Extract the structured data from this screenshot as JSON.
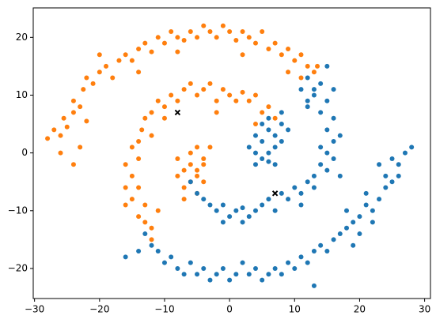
{
  "chart_data": {
    "type": "scatter",
    "xlim": [
      -30.2,
      30.9
    ],
    "ylim": [
      -25.2,
      25.1
    ],
    "xticks": [
      {
        "value": -30,
        "label": "−30"
      },
      {
        "value": -20,
        "label": "−20"
      },
      {
        "value": -10,
        "label": "−10"
      },
      0,
      10,
      20,
      30
    ],
    "yticks": [
      {
        "value": -20,
        "label": "−20"
      },
      {
        "value": -10,
        "label": "−10"
      },
      0,
      10,
      20
    ],
    "grid": false,
    "series": [
      {
        "color": "#ff7f0e",
        "marker": "o",
        "x": [
          -28,
          -27,
          -26,
          -25.5,
          -25,
          -24,
          -24,
          -23,
          -22.5,
          -22,
          -21,
          -20,
          -19,
          -18,
          -17,
          -16,
          -15,
          -14,
          -13,
          -12,
          -11,
          -10,
          -9,
          -8,
          -7,
          -6,
          -5,
          -4,
          -3,
          -2,
          -1,
          0,
          1,
          2,
          3,
          4,
          5,
          6,
          7,
          8,
          9,
          10,
          11,
          12,
          13,
          13.5,
          -26,
          -24,
          -23,
          -20,
          -8,
          2,
          9,
          11,
          -22,
          -14,
          7,
          6,
          5,
          4,
          3,
          2,
          1,
          0,
          -1,
          -2,
          -3,
          -4,
          -5,
          -6,
          -7,
          -8,
          -9,
          -10,
          -11,
          -12,
          -13,
          -13.5,
          -14,
          -15,
          -14,
          -16,
          -15,
          -16,
          -14,
          -15,
          -13,
          -14,
          -13,
          -12,
          -12,
          -16,
          -11,
          -10,
          -2,
          4,
          -12,
          -8,
          -7,
          -6,
          -5,
          -6,
          -7,
          -5,
          -4,
          -6,
          -5,
          -4,
          -3,
          -7,
          -8,
          -5,
          -4
        ],
        "values": [
          2.5,
          4,
          3,
          6,
          4.5,
          7,
          9,
          8,
          11,
          13,
          12,
          14,
          15,
          13,
          16,
          17,
          16,
          18,
          19,
          17.5,
          20,
          19,
          21,
          20,
          19.5,
          21,
          20,
          22,
          21,
          20,
          22,
          21,
          19.5,
          21,
          20,
          19,
          21,
          18,
          19,
          17,
          18,
          16,
          17,
          15,
          14,
          15,
          0,
          -2,
          1,
          17,
          17.5,
          17,
          14,
          13,
          5.5,
          14,
          6,
          8,
          7,
          10,
          9,
          10.5,
          9,
          10,
          11,
          9,
          12,
          11,
          10,
          12,
          11,
          9,
          10,
          8,
          9,
          7,
          6,
          4,
          2,
          1,
          -1,
          -2,
          -4,
          -6,
          -6,
          -8,
          -9,
          -11,
          -12,
          -13,
          -15,
          -9,
          -10,
          6,
          7,
          5,
          3,
          -1,
          -3,
          -2,
          -4,
          -5,
          -6,
          -7,
          -5,
          0,
          1,
          -1,
          1,
          -8,
          -4,
          -3,
          -2
        ]
      },
      {
        "color": "#1f77b4",
        "marker": "o",
        "x": [
          3,
          4,
          5,
          6,
          7,
          5,
          6,
          8,
          7,
          4,
          5,
          6,
          8,
          9,
          7,
          4,
          8,
          6,
          -6,
          -5,
          -4,
          -3,
          -2,
          -1,
          0,
          1,
          2,
          3,
          4,
          5,
          6,
          7,
          8,
          9,
          10,
          11,
          12,
          13,
          13,
          14,
          15,
          15,
          16,
          14,
          15,
          16,
          14,
          15,
          13,
          14,
          12,
          13,
          16,
          17,
          11,
          -1,
          2,
          17,
          12,
          16,
          11,
          15,
          12,
          -13,
          -12,
          -11,
          -14,
          -10,
          -9,
          -8,
          -7,
          -6,
          -5,
          -4,
          -3,
          -2,
          -1,
          0,
          1,
          2,
          3,
          4,
          5,
          6,
          7,
          8,
          9,
          10,
          11,
          12,
          13,
          14,
          15,
          16,
          17,
          18,
          19,
          18,
          20,
          21,
          22,
          21,
          23,
          24,
          24,
          25,
          26,
          25,
          27,
          23,
          20,
          22,
          -16,
          13,
          19,
          26,
          28
        ],
        "values": [
          1,
          3,
          2,
          4,
          3,
          5,
          6,
          5,
          1,
          0,
          -1,
          0,
          2,
          4,
          -2,
          -2,
          7,
          -1.5,
          -5,
          -7,
          -8,
          -9,
          -10,
          -9,
          -11,
          -10,
          -9.5,
          -11,
          -10,
          -9,
          -8,
          -10,
          -7,
          -8,
          -6,
          -7,
          -5,
          -4,
          -6,
          -2,
          -3,
          0,
          2,
          1,
          4,
          6,
          7,
          9,
          10,
          12,
          13,
          11,
          -1,
          -4,
          -9,
          -12,
          -12,
          3,
          9,
          11,
          11,
          15,
          8,
          -14,
          -16,
          -17,
          -17,
          -19,
          -18,
          -20,
          -21,
          -19,
          -21,
          -20,
          -22,
          -21,
          -20,
          -22,
          -21,
          -19,
          -21,
          -20,
          -22,
          -21,
          -20,
          -21,
          -19,
          -20,
          -18,
          -19,
          -17,
          -16,
          -17,
          -15,
          -14,
          -13,
          -12,
          -10,
          -11,
          -9,
          -10,
          -7,
          -8,
          -6,
          -4,
          -5,
          -2,
          -1,
          0,
          -2,
          -14,
          -12,
          -18,
          -23,
          -16,
          -4,
          1
        ]
      },
      {
        "color": "#000000",
        "marker": "x",
        "x": [
          -8,
          7
        ],
        "values": [
          7,
          -7
        ]
      }
    ]
  }
}
